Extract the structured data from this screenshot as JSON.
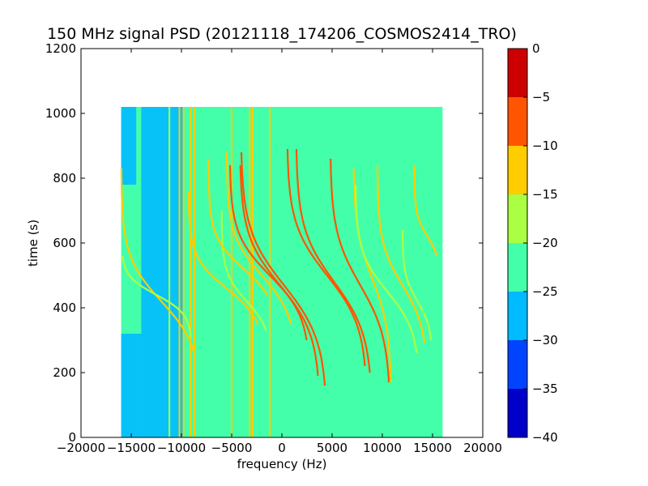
{
  "chart_data": {
    "type": "heatmap",
    "title": "150 MHz signal PSD (20121118_174206_COSMOS2414_TRO)",
    "xlabel": "frequency (Hz)",
    "ylabel": "time (s)",
    "xlim": [
      -20000,
      20000
    ],
    "ylim": [
      0,
      1200
    ],
    "xticks": [
      -20000,
      -15000,
      -10000,
      -5000,
      0,
      5000,
      10000,
      15000,
      20000
    ],
    "xtick_labels": [
      "−20000",
      "−15000",
      "−10000",
      "−5000",
      "0",
      "5000",
      "10000",
      "15000",
      "20000"
    ],
    "yticks": [
      0,
      200,
      400,
      600,
      800,
      1000,
      1200
    ],
    "ytick_labels": [
      "0",
      "200",
      "400",
      "600",
      "800",
      "1000",
      "1200"
    ],
    "data_extent": {
      "freq": [
        -16000,
        16000
      ],
      "time": [
        0,
        1020
      ]
    },
    "background_level": -22.5,
    "colorbar": {
      "boundaries": [
        -40,
        -35,
        -30,
        -25,
        -20,
        -15,
        -10,
        -5,
        0
      ],
      "colors": [
        "#0000c8",
        "#0044ff",
        "#00bbff",
        "#44ffaa",
        "#aaff44",
        "#ffcc00",
        "#ff5500",
        "#cc0000"
      ],
      "tick_labels": [
        "0",
        "−5",
        "−10",
        "−15",
        "−20",
        "−25",
        "−30",
        "−35",
        "−40"
      ],
      "tick_values": [
        0,
        -5,
        -10,
        -15,
        -20,
        -25,
        -30,
        -35,
        -40
      ]
    },
    "low_level_bands": [
      {
        "f0": -14000,
        "f1": -11000,
        "t0": 0,
        "t1": 1020,
        "level": -27.5
      },
      {
        "f0": -16000,
        "f1": -14000,
        "t0": 0,
        "t1": 320,
        "level": -27.5
      },
      {
        "f0": -11000,
        "f1": -9800,
        "t0": 0,
        "t1": 1020,
        "level": -27.5
      },
      {
        "f0": -16000,
        "f1": -14500,
        "t0": 780,
        "t1": 1020,
        "level": -27.5
      }
    ],
    "vertical_lines": [
      {
        "freq": -11200,
        "level": -17.5
      },
      {
        "freq": -10200,
        "level": -12.5
      },
      {
        "freq": -9800,
        "level": -12.5
      },
      {
        "freq": -9100,
        "level": -12.5
      },
      {
        "freq": -8700,
        "level": -12.5
      },
      {
        "freq": -5000,
        "level": -12.5
      },
      {
        "freq": -3200,
        "level": -12.5
      },
      {
        "freq": -2900,
        "level": -12.5
      },
      {
        "freq": -1200,
        "level": -12.5
      }
    ],
    "doppler_tracks": [
      {
        "center_freq": -12000,
        "center_time": 420,
        "half_span_freq": 4000,
        "t_top": 830,
        "t_bot": 250,
        "level": -12.5
      },
      {
        "center_freq": -12500,
        "center_time": 440,
        "half_span_freq": 3500,
        "t_top": 560,
        "t_bot": 310,
        "level": -17.5
      },
      {
        "center_freq": -5500,
        "center_time": 460,
        "half_span_freq": 3800,
        "t_top": 760,
        "t_bot": 350,
        "level": -12.5
      },
      {
        "center_freq": -3500,
        "center_time": 420,
        "half_span_freq": 2500,
        "t_top": 700,
        "t_bot": 330,
        "level": -17.5
      },
      {
        "center_freq": -3800,
        "center_time": 520,
        "half_span_freq": 3500,
        "t_top": 860,
        "t_bot": 440,
        "level": -12.5
      },
      {
        "center_freq": -2000,
        "center_time": 500,
        "half_span_freq": 3500,
        "t_top": 880,
        "t_bot": 350,
        "level": -12.5
      },
      {
        "center_freq": -1200,
        "center_time": 500,
        "half_span_freq": 4000,
        "t_top": 840,
        "t_bot": 300,
        "level": -7.5
      },
      {
        "center_freq": -200,
        "center_time": 470,
        "half_span_freq": 4000,
        "t_top": 840,
        "t_bot": 190,
        "level": -7.5
      },
      {
        "center_freq": 200,
        "center_time": 470,
        "half_span_freq": 4300,
        "t_top": 880,
        "t_bot": 160,
        "level": -7.5
      },
      {
        "center_freq": 4500,
        "center_time": 500,
        "half_span_freq": 4000,
        "t_top": 890,
        "t_bot": 220,
        "level": -7.5
      },
      {
        "center_freq": 5200,
        "center_time": 480,
        "half_span_freq": 3800,
        "t_top": 890,
        "t_bot": 200,
        "level": -7.5
      },
      {
        "center_freq": 7800,
        "center_time": 470,
        "half_span_freq": 3000,
        "t_top": 860,
        "t_bot": 170,
        "level": -7.5
      },
      {
        "center_freq": 9000,
        "center_time": 490,
        "half_span_freq": 1900,
        "t_top": 830,
        "t_bot": 170,
        "level": -12.5
      },
      {
        "center_freq": 10500,
        "center_time": 450,
        "half_span_freq": 3200,
        "t_top": 780,
        "t_bot": 260,
        "level": -17.5
      },
      {
        "center_freq": 12000,
        "center_time": 470,
        "half_span_freq": 2500,
        "t_top": 840,
        "t_bot": 290,
        "level": -12.5
      },
      {
        "center_freq": 14500,
        "center_time": 620,
        "half_span_freq": 1300,
        "t_top": 840,
        "t_bot": 560,
        "level": -12.5
      },
      {
        "center_freq": 13500,
        "center_time": 420,
        "half_span_freq": 1500,
        "t_top": 640,
        "t_bot": 300,
        "level": -17.5
      }
    ]
  }
}
